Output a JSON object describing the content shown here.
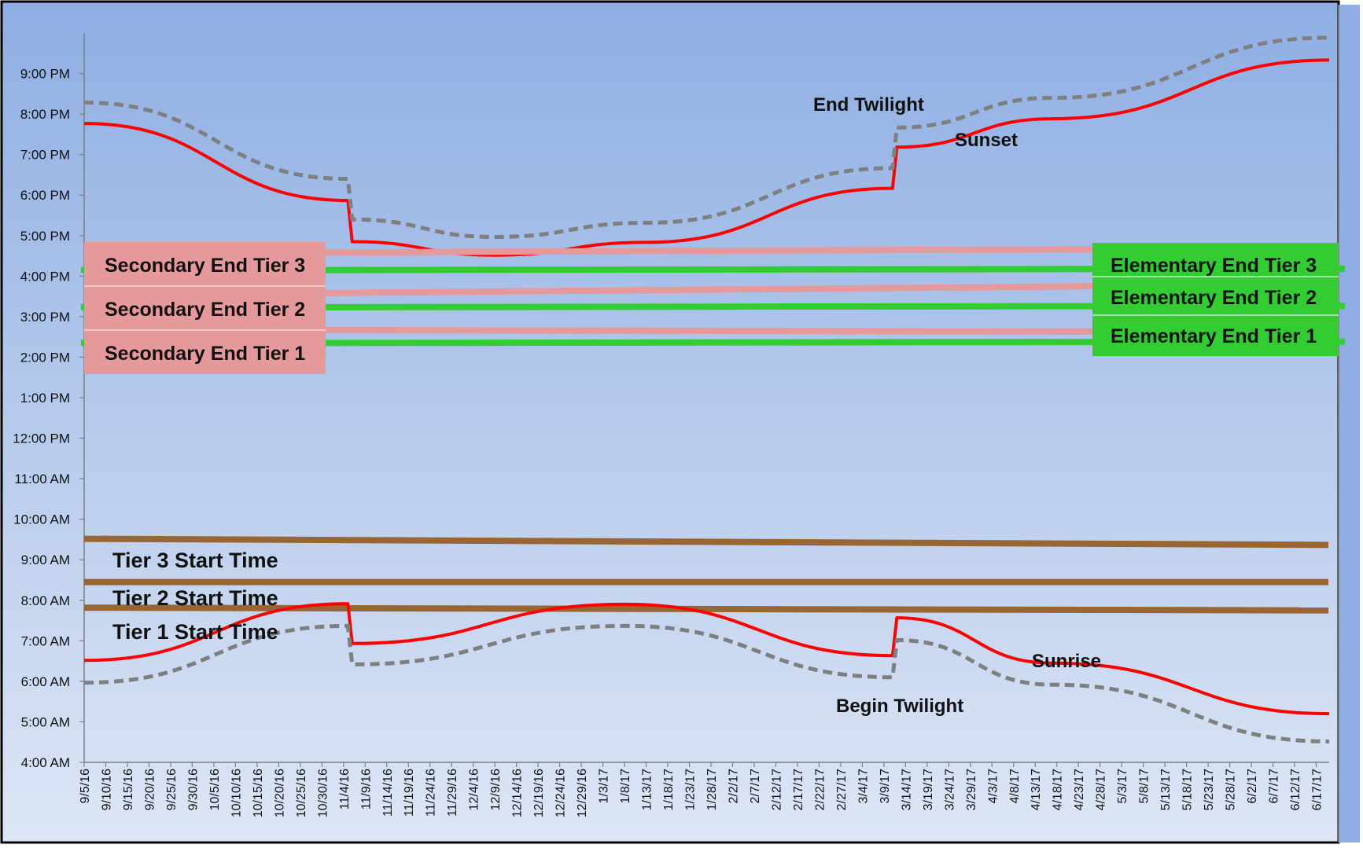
{
  "chart_data": {
    "type": "line",
    "title": "",
    "xlabel": "",
    "ylabel": "",
    "y_axis": {
      "min": "4:00 AM",
      "max": "10:00 PM",
      "tick_labels": [
        "4:00 AM",
        "5:00 AM",
        "6:00 AM",
        "7:00 AM",
        "8:00 AM",
        "9:00 AM",
        "10:00 AM",
        "11:00 AM",
        "12:00 PM",
        "1:00 PM",
        "2:00 PM",
        "3:00 PM",
        "4:00 PM",
        "5:00 PM",
        "6:00 PM",
        "7:00 PM",
        "8:00 PM",
        "9:00 PM"
      ]
    },
    "x_axis": {
      "min": "9/5/16",
      "max": "6/20/17",
      "tick_labels": [
        "9/5/16",
        "9/10/16",
        "9/15/16",
        "9/20/16",
        "9/25/16",
        "9/30/16",
        "10/5/16",
        "10/10/16",
        "10/15/16",
        "10/20/16",
        "10/25/16",
        "10/30/16",
        "11/4/16",
        "11/9/16",
        "11/14/16",
        "11/19/16",
        "11/24/16",
        "11/29/16",
        "12/4/16",
        "12/9/16",
        "12/14/16",
        "12/19/16",
        "12/24/16",
        "12/29/16",
        "1/3/17",
        "1/8/17",
        "1/13/17",
        "1/18/17",
        "1/23/17",
        "1/28/17",
        "2/2/17",
        "2/7/17",
        "2/12/17",
        "2/17/17",
        "2/22/17",
        "2/27/17",
        "3/4/17",
        "3/9/17",
        "3/14/17",
        "3/19/17",
        "3/24/17",
        "3/29/17",
        "4/3/17",
        "4/8/17",
        "4/13/17",
        "4/18/17",
        "4/23/17",
        "4/28/17",
        "5/3/17",
        "5/8/17",
        "5/13/17",
        "5/18/17",
        "5/23/17",
        "5/28/17",
        "6/2/17",
        "6/7/17",
        "6/12/17",
        "6/17/17"
      ]
    },
    "grid": false,
    "colors": {
      "sun_line": "#ff0000",
      "twilight_line": "#7f7f7f",
      "secondary": "#e6999b",
      "elementary": "#33cc33",
      "start_time": "#996633",
      "background_top": "#8eaee3",
      "background_bottom": "#dde6f5"
    },
    "series": [
      {
        "name": "Sunset",
        "style": "solid",
        "color": "#ff0000",
        "points": [
          [
            "9/5/16",
            "7:46 PM"
          ],
          [
            "11/5/16",
            "5:52 PM"
          ],
          [
            "11/6/16",
            "4:51 PM"
          ],
          [
            "12/9/16",
            "4:31 PM"
          ],
          [
            "1/13/17",
            "4:50 PM"
          ],
          [
            "3/11/17",
            "6:10 PM"
          ],
          [
            "3/12/17",
            "7:11 PM"
          ],
          [
            "4/17/17",
            "7:53 PM"
          ],
          [
            "6/20/17",
            "9:20 PM"
          ]
        ]
      },
      {
        "name": "End Twilight",
        "style": "dashed",
        "color": "#7f7f7f",
        "points": [
          [
            "9/5/16",
            "8:17 PM"
          ],
          [
            "11/5/16",
            "6:24 PM"
          ],
          [
            "11/6/16",
            "5:24 PM"
          ],
          [
            "12/9/16",
            "4:58 PM"
          ],
          [
            "1/13/17",
            "5:19 PM"
          ],
          [
            "3/11/17",
            "6:40 PM"
          ],
          [
            "3/12/17",
            "7:40 PM"
          ],
          [
            "4/17/17",
            "8:24 PM"
          ],
          [
            "6/20/17",
            "9:53 PM"
          ]
        ]
      },
      {
        "name": "Sunrise",
        "style": "solid",
        "color": "#ff0000",
        "points": [
          [
            "9/5/16",
            "6:31 AM"
          ],
          [
            "11/5/16",
            "7:55 AM"
          ],
          [
            "11/6/16",
            "6:56 AM"
          ],
          [
            "1/8/17",
            "7:54 AM"
          ],
          [
            "3/11/17",
            "6:38 AM"
          ],
          [
            "3/12/17",
            "7:34 AM"
          ],
          [
            "4/17/17",
            "6:27 AM"
          ],
          [
            "6/20/17",
            "5:12 AM"
          ]
        ]
      },
      {
        "name": "Begin Twilight",
        "style": "dashed",
        "color": "#7f7f7f",
        "points": [
          [
            "9/5/16",
            "5:58 AM"
          ],
          [
            "11/5/16",
            "7:22 AM"
          ],
          [
            "11/6/16",
            "6:25 AM"
          ],
          [
            "1/8/17",
            "7:22 AM"
          ],
          [
            "3/11/17",
            "6:06 AM"
          ],
          [
            "3/12/17",
            "7:01 AM"
          ],
          [
            "4/17/17",
            "5:55 AM"
          ],
          [
            "6/20/17",
            "4:31 AM"
          ]
        ]
      }
    ],
    "reference_lines": [
      {
        "group": "secondary",
        "color": "#e6999b",
        "start": "4:35 PM",
        "end": "4:40 PM"
      },
      {
        "group": "secondary",
        "color": "#e6999b",
        "start": "3:35 PM",
        "end": "3:45 PM"
      },
      {
        "group": "secondary",
        "color": "#e6999b",
        "start": "2:40 PM",
        "end": "2:38 PM"
      },
      {
        "group": "elementary",
        "color": "#33cc33",
        "start": "4:09 PM",
        "end": "4:11 PM"
      },
      {
        "group": "elementary",
        "color": "#33cc33",
        "start": "3:14 PM",
        "end": "3:16 PM"
      },
      {
        "group": "elementary",
        "color": "#33cc33",
        "start": "2:21 PM",
        "end": "2:23 PM"
      },
      {
        "group": "start",
        "color": "#996633",
        "start": "9:31 AM",
        "end": "9:22 AM"
      },
      {
        "group": "start",
        "color": "#996633",
        "start": "8:27 AM",
        "end": "8:27 AM"
      },
      {
        "group": "start",
        "color": "#996633",
        "start": "7:49 AM",
        "end": "7:45 AM"
      }
    ],
    "annotations": {
      "end_twilight": "End Twilight",
      "sunset": "Sunset",
      "sunrise": "Sunrise",
      "begin_twilight": "Begin Twilight",
      "secondary_tier3": "Secondary End Tier 3",
      "secondary_tier2": "Secondary End Tier 2",
      "secondary_tier1": "Secondary End Tier 1",
      "elementary_tier3": "Elementary End Tier 3",
      "elementary_tier2": "Elementary End Tier 2",
      "elementary_tier1": "Elementary End Tier 1",
      "tier3_start": "Tier 3 Start Time",
      "tier2_start": "Tier 2 Start Time",
      "tier1_start": "Tier 1 Start Time"
    }
  }
}
